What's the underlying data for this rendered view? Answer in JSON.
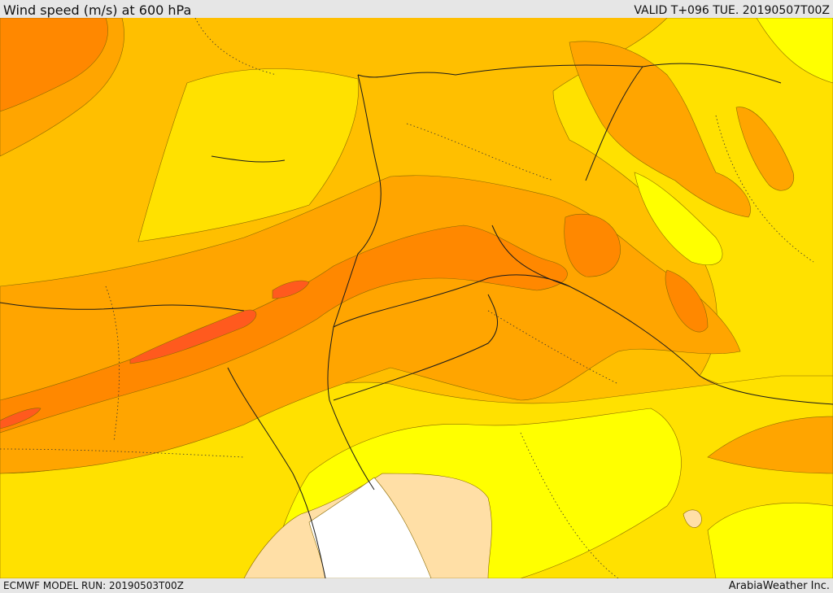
{
  "header": {
    "title": "Wind speed (m/s) at 600 hPa",
    "valid": "VALID T+096 TUE. 20190507T00Z"
  },
  "footer": {
    "model_run": "ECMWF MODEL RUN: 20190503T00Z",
    "credit": "ArabiaWeather Inc."
  },
  "colors": {
    "level_light": "#ffff00",
    "level_yellow": "#ffe100",
    "level_gold": "#ffbf00",
    "level_amber": "#ffa500",
    "level_orange": "#ff8800",
    "level_red": "#ff5a1e",
    "calm_low": "#ffdfa6",
    "calm_none": "#ffffff"
  }
}
